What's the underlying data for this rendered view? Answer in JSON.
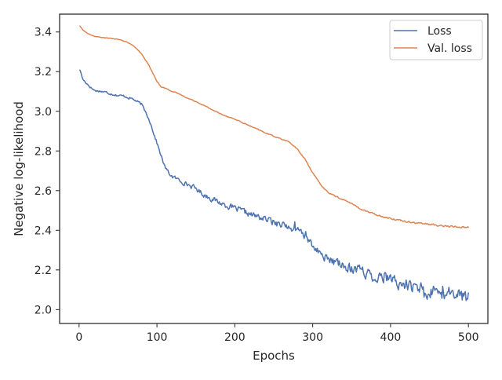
{
  "chart_data": {
    "type": "line",
    "title": "",
    "xlabel": "Epochs",
    "ylabel": "Negative log-likelihood",
    "xlim": [
      -25,
      525
    ],
    "ylim": [
      1.93,
      3.49
    ],
    "xticks": [
      0,
      100,
      200,
      300,
      400,
      500
    ],
    "yticks": [
      2.0,
      2.2,
      2.4,
      2.6,
      2.8,
      3.0,
      3.2,
      3.4
    ],
    "xtick_labels": [
      "0",
      "100",
      "200",
      "300",
      "400",
      "500"
    ],
    "ytick_labels": [
      "2.0",
      "2.2",
      "2.4",
      "2.6",
      "2.8",
      "3.0",
      "3.2",
      "3.4"
    ],
    "grid": false,
    "legend": "top-right",
    "series": [
      {
        "name": "Loss",
        "color": "#4c72b0",
        "noise_amplitude": [
          [
            0,
            0.008
          ],
          [
            100,
            0.012
          ],
          [
            150,
            0.02
          ],
          [
            300,
            0.03
          ],
          [
            400,
            0.05
          ],
          [
            500,
            0.06
          ]
        ],
        "points": [
          [
            1,
            3.21
          ],
          [
            5,
            3.16
          ],
          [
            10,
            3.14
          ],
          [
            15,
            3.12
          ],
          [
            20,
            3.105
          ],
          [
            30,
            3.1
          ],
          [
            40,
            3.09
          ],
          [
            50,
            3.08
          ],
          [
            60,
            3.075
          ],
          [
            70,
            3.06
          ],
          [
            80,
            3.035
          ],
          [
            85,
            3.0
          ],
          [
            90,
            2.96
          ],
          [
            95,
            2.9
          ],
          [
            100,
            2.84
          ],
          [
            105,
            2.78
          ],
          [
            110,
            2.72
          ],
          [
            115,
            2.69
          ],
          [
            120,
            2.67
          ],
          [
            130,
            2.65
          ],
          [
            140,
            2.63
          ],
          [
            150,
            2.61
          ],
          [
            160,
            2.58
          ],
          [
            170,
            2.56
          ],
          [
            180,
            2.54
          ],
          [
            200,
            2.51
          ],
          [
            220,
            2.48
          ],
          [
            240,
            2.455
          ],
          [
            260,
            2.43
          ],
          [
            280,
            2.4
          ],
          [
            290,
            2.37
          ],
          [
            300,
            2.32
          ],
          [
            310,
            2.28
          ],
          [
            320,
            2.255
          ],
          [
            330,
            2.235
          ],
          [
            340,
            2.22
          ],
          [
            360,
            2.2
          ],
          [
            380,
            2.17
          ],
          [
            400,
            2.145
          ],
          [
            420,
            2.12
          ],
          [
            440,
            2.1
          ],
          [
            460,
            2.085
          ],
          [
            480,
            2.075
          ],
          [
            500,
            2.06
          ]
        ]
      },
      {
        "name": "Val. loss",
        "color": "#dd8452",
        "noise_amplitude": [
          [
            0,
            0.001
          ],
          [
            100,
            0.003
          ],
          [
            300,
            0.004
          ],
          [
            400,
            0.006
          ],
          [
            500,
            0.008
          ]
        ],
        "points": [
          [
            1,
            3.43
          ],
          [
            5,
            3.41
          ],
          [
            10,
            3.395
          ],
          [
            15,
            3.385
          ],
          [
            20,
            3.378
          ],
          [
            30,
            3.372
          ],
          [
            40,
            3.368
          ],
          [
            50,
            3.363
          ],
          [
            60,
            3.352
          ],
          [
            70,
            3.33
          ],
          [
            80,
            3.29
          ],
          [
            90,
            3.23
          ],
          [
            95,
            3.19
          ],
          [
            100,
            3.15
          ],
          [
            105,
            3.125
          ],
          [
            110,
            3.118
          ],
          [
            120,
            3.1
          ],
          [
            130,
            3.085
          ],
          [
            140,
            3.065
          ],
          [
            150,
            3.05
          ],
          [
            160,
            3.03
          ],
          [
            170,
            3.01
          ],
          [
            180,
            2.99
          ],
          [
            200,
            2.96
          ],
          [
            220,
            2.925
          ],
          [
            240,
            2.89
          ],
          [
            260,
            2.86
          ],
          [
            270,
            2.845
          ],
          [
            280,
            2.81
          ],
          [
            290,
            2.76
          ],
          [
            300,
            2.69
          ],
          [
            310,
            2.63
          ],
          [
            320,
            2.59
          ],
          [
            330,
            2.57
          ],
          [
            340,
            2.553
          ],
          [
            350,
            2.535
          ],
          [
            360,
            2.51
          ],
          [
            370,
            2.495
          ],
          [
            380,
            2.48
          ],
          [
            400,
            2.46
          ],
          [
            420,
            2.445
          ],
          [
            440,
            2.435
          ],
          [
            460,
            2.425
          ],
          [
            480,
            2.418
          ],
          [
            500,
            2.415
          ]
        ]
      }
    ]
  }
}
